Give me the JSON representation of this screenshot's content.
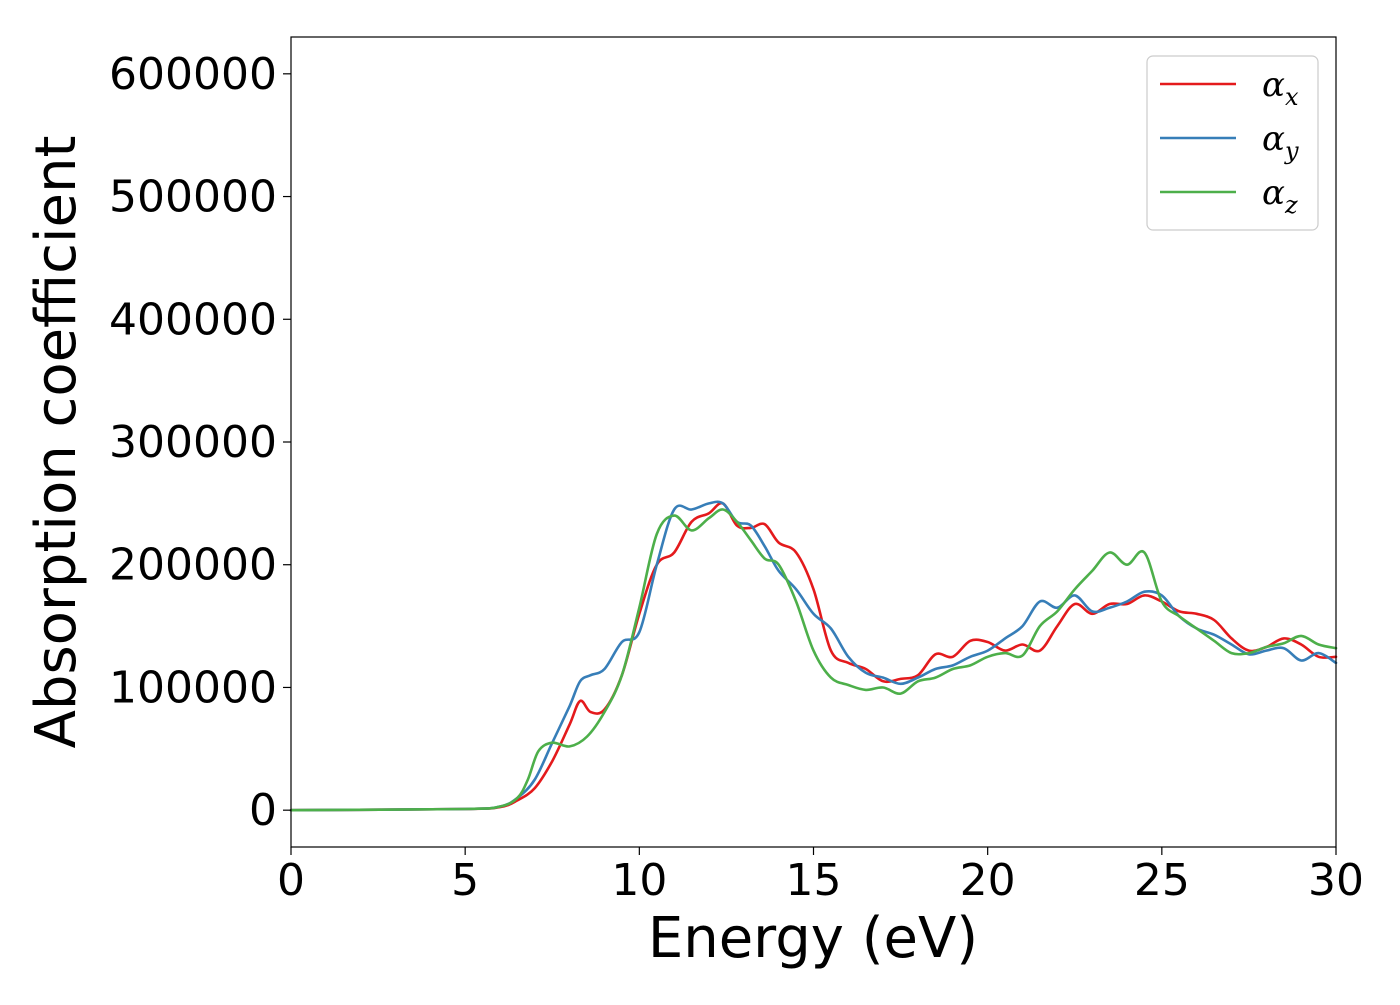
{
  "chart_data": {
    "type": "line",
    "xlabel": "Energy (eV)",
    "ylabel": "Absorption coefficient",
    "xlim": [
      0,
      30
    ],
    "ylim": [
      -30000,
      630000
    ],
    "xticks": [
      0,
      5,
      10,
      15,
      20,
      25,
      30
    ],
    "xtick_labels": [
      "0",
      "5",
      "10",
      "15",
      "20",
      "25",
      "30"
    ],
    "yticks": [
      0,
      100000,
      200000,
      300000,
      400000,
      500000,
      600000
    ],
    "ytick_labels": [
      "0",
      "100000",
      "200000",
      "300000",
      "400000",
      "500000",
      "600000"
    ],
    "grid": false,
    "legend_position": "top-right",
    "series": [
      {
        "name": "αx",
        "legend_symbol": "α",
        "legend_subscript": "x",
        "color": "#e41a1c",
        "x": [
          0,
          5,
          6,
          6.5,
          7,
          7.5,
          8,
          8.3,
          8.6,
          9,
          9.5,
          10,
          10.5,
          11,
          11.5,
          12,
          12.4,
          12.8,
          13.2,
          13.6,
          14,
          14.5,
          15,
          15.5,
          16,
          16.5,
          17,
          17.5,
          18,
          18.5,
          19,
          19.5,
          20,
          20.5,
          21,
          21.5,
          22,
          22.5,
          23,
          23.5,
          24,
          24.5,
          25,
          25.5,
          26,
          26.5,
          27,
          27.5,
          28,
          28.5,
          29,
          29.5,
          30
        ],
        "y": [
          0,
          1000,
          2500,
          8000,
          18000,
          40000,
          70000,
          89000,
          80000,
          82000,
          110000,
          160000,
          200000,
          210000,
          235000,
          242000,
          250000,
          232000,
          230000,
          233000,
          218000,
          210000,
          180000,
          130000,
          120000,
          115000,
          105000,
          107000,
          110000,
          127000,
          125000,
          138000,
          137000,
          130000,
          135000,
          130000,
          150000,
          168000,
          160000,
          168000,
          168000,
          175000,
          170000,
          162000,
          160000,
          155000,
          140000,
          130000,
          133000,
          140000,
          135000,
          125000,
          125000
        ]
      },
      {
        "name": "αy",
        "legend_symbol": "α",
        "legend_subscript": "y",
        "color": "#377eb8",
        "x": [
          0,
          5,
          6,
          6.5,
          7,
          7.5,
          8,
          8.3,
          8.6,
          9,
          9.5,
          10,
          10.5,
          11,
          11.5,
          12,
          12.4,
          12.8,
          13.2,
          13.6,
          14,
          14.5,
          15,
          15.5,
          16,
          16.5,
          17,
          17.5,
          18,
          18.5,
          19,
          19.5,
          20,
          20.5,
          21,
          21.5,
          22,
          22.5,
          23,
          23.5,
          24,
          24.5,
          25,
          25.5,
          26,
          26.5,
          27,
          27.5,
          28,
          28.5,
          29,
          29.5,
          30
        ],
        "y": [
          0,
          1000,
          3000,
          10000,
          25000,
          55000,
          85000,
          105000,
          110000,
          115000,
          137000,
          145000,
          200000,
          245000,
          245000,
          250000,
          250000,
          235000,
          232000,
          215000,
          195000,
          180000,
          160000,
          148000,
          125000,
          112000,
          108000,
          103000,
          108000,
          115000,
          118000,
          125000,
          130000,
          140000,
          150000,
          170000,
          165000,
          175000,
          162000,
          165000,
          170000,
          178000,
          175000,
          158000,
          148000,
          143000,
          135000,
          127000,
          130000,
          132000,
          122000,
          128000,
          120000
        ]
      },
      {
        "name": "αz",
        "legend_symbol": "α",
        "legend_subscript": "z",
        "color": "#4daf4a",
        "x": [
          0,
          5,
          6,
          6.5,
          6.8,
          7.1,
          7.5,
          8,
          8.5,
          9,
          9.5,
          10,
          10.5,
          11,
          11.5,
          12,
          12.4,
          12.8,
          13.2,
          13.6,
          14,
          14.5,
          15,
          15.5,
          16,
          16.5,
          17,
          17.5,
          18,
          18.5,
          19,
          19.5,
          20,
          20.5,
          21,
          21.5,
          22,
          22.5,
          23,
          23.5,
          24,
          24.5,
          25,
          25.5,
          26,
          26.5,
          27,
          27.5,
          28,
          28.5,
          29,
          29.5,
          30
        ],
        "y": [
          0,
          1000,
          3000,
          10000,
          25000,
          48000,
          55000,
          52000,
          60000,
          80000,
          110000,
          165000,
          225000,
          240000,
          228000,
          238000,
          245000,
          235000,
          220000,
          205000,
          200000,
          170000,
          130000,
          108000,
          102000,
          98000,
          100000,
          95000,
          105000,
          108000,
          115000,
          118000,
          125000,
          128000,
          126000,
          150000,
          162000,
          180000,
          195000,
          210000,
          200000,
          210000,
          170000,
          158000,
          148000,
          138000,
          128000,
          128000,
          133000,
          136000,
          142000,
          135000,
          132000
        ]
      }
    ]
  }
}
